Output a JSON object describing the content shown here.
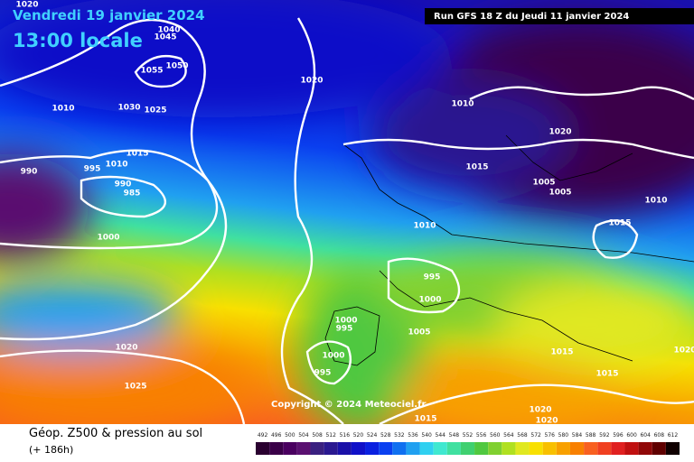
{
  "header": {
    "date": "Vendredi 19 janvier 2024",
    "time": "13:00 locale",
    "run": "Run GFS 18 Z du Jeudi 11 janvier 2024"
  },
  "copyright": "Copyright © 2024 Meteociel.fr",
  "footer": {
    "title": "Géop. Z500 & pression au sol",
    "lead": "(+ 186h)"
  },
  "isobars": {
    "labels": [
      1020,
      1045,
      1040,
      1055,
      1050,
      1010,
      1030,
      1025,
      1020,
      1015,
      995,
      1010,
      990,
      990,
      985,
      1000,
      1010,
      1020,
      1015,
      1005,
      1005,
      1010,
      1010,
      1015,
      995,
      1000,
      1000,
      995,
      1005,
      1020,
      1000,
      995,
      1025,
      1015,
      1015,
      1020,
      1020,
      1020,
      1015
    ]
  },
  "legend": {
    "values": [
      492,
      496,
      500,
      504,
      508,
      512,
      516,
      520,
      524,
      528,
      532,
      536,
      540,
      544,
      548,
      552,
      556,
      560,
      564,
      568,
      572,
      576,
      580,
      584,
      588,
      592,
      596,
      600,
      604,
      608,
      612
    ],
    "colors": [
      "#2a0030",
      "#3a0048",
      "#4a0060",
      "#5a1070",
      "#3a2080",
      "#2a1890",
      "#1a10a8",
      "#1010c8",
      "#0a20e0",
      "#0a40f0",
      "#1070f0",
      "#20a0f0",
      "#30d0f0",
      "#40e8d0",
      "#40e0a0",
      "#40d070",
      "#50c840",
      "#80d030",
      "#b0e020",
      "#e0e820",
      "#f8e000",
      "#f8c000",
      "#f8a000",
      "#f88000",
      "#f86020",
      "#f04020",
      "#e02020",
      "#c01010",
      "#900808",
      "#600000",
      "#100000"
    ]
  }
}
